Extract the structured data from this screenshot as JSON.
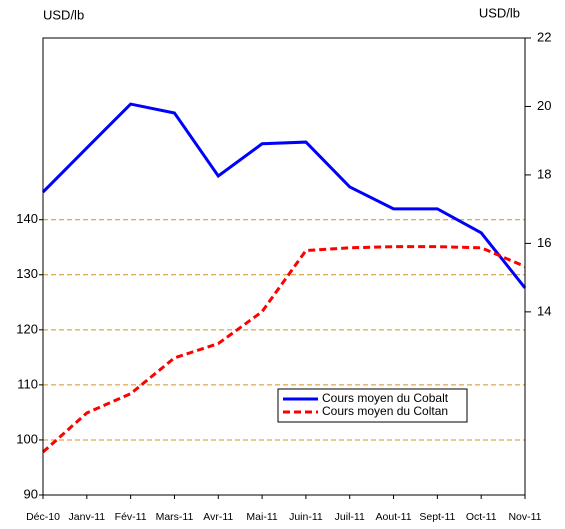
{
  "chart_data": {
    "type": "line",
    "y_label": "USD/lb",
    "y2_label": "USD/lb",
    "categories": [
      "Déc-10",
      "Janv-11",
      "Fév-11",
      "Mars-11",
      "Avr-11",
      "Mai-11",
      "Juin-11",
      "Juil-11",
      "Aout-11",
      "Sept-11",
      "Oct-11",
      "Nov-11"
    ],
    "series": [
      {
        "name": "Cours moyen du Cobalt",
        "color": "#0000ff",
        "axis": "y2",
        "dash": false,
        "values": [
          17.5,
          18.79,
          20.07,
          19.81,
          17.97,
          18.91,
          18.96,
          17.65,
          17.01,
          17.01,
          16.31,
          14.7
        ]
      },
      {
        "name": "Cours moyen du Coltan",
        "color": "#ff0000",
        "axis": "y",
        "dash": true,
        "values": [
          97.8,
          104.9,
          108.4,
          114.9,
          117.5,
          123.3,
          134.4,
          134.9,
          135.1,
          135.1,
          134.9,
          131.5
        ]
      }
    ],
    "ylim": [
      90,
      173
    ],
    "yticks": [
      90,
      100,
      110,
      120,
      130,
      140
    ],
    "y2lim": [
      8.65,
      22
    ],
    "y2ticks": [
      14,
      16,
      18,
      20,
      22
    ],
    "grid": true,
    "grid_color": "#d4901c"
  }
}
